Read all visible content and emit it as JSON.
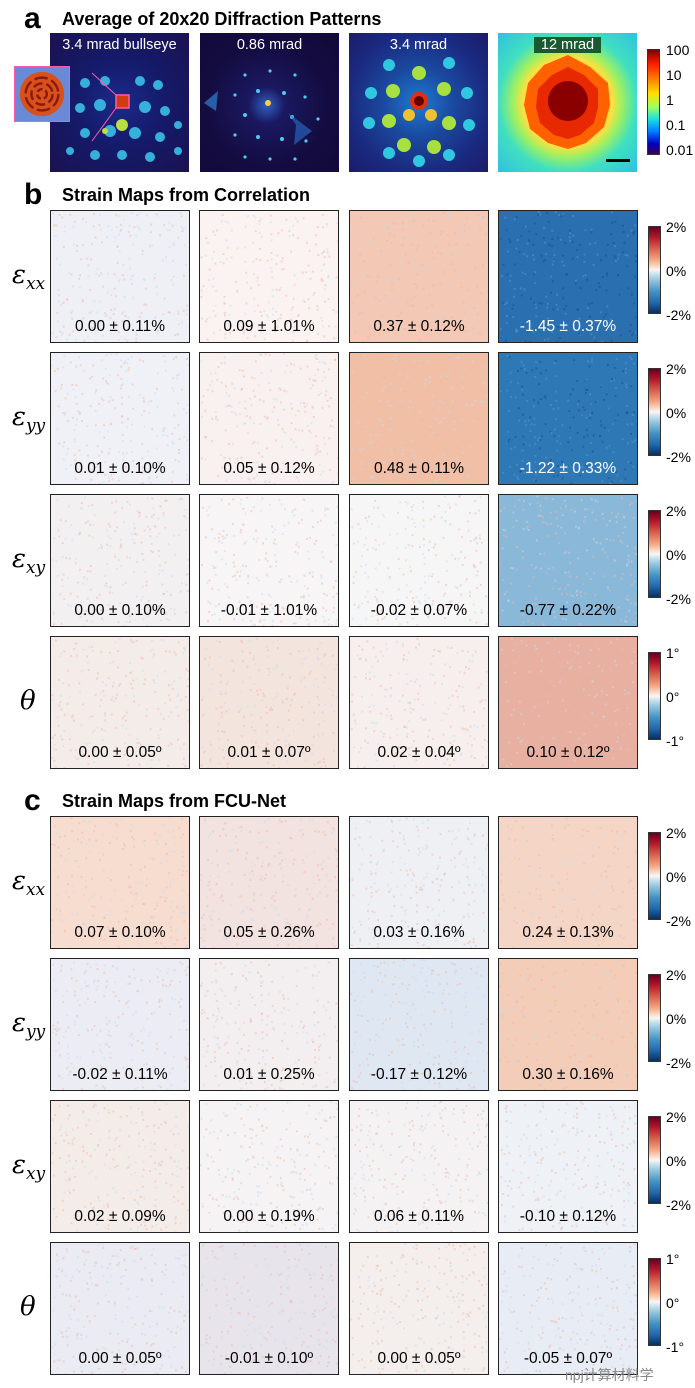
{
  "panel_a": {
    "letter": "a",
    "title": "Average of 20x20 Diffraction Patterns",
    "images": [
      {
        "label": "3.4 mrad bullseye"
      },
      {
        "label": "0.86 mrad"
      },
      {
        "label": "3.4 mrad"
      },
      {
        "label": "12 mrad"
      }
    ],
    "colorbar_ticks": [
      "100",
      "10",
      "1",
      "0.1",
      "0.01"
    ]
  },
  "panel_b": {
    "letter": "b",
    "title": "Strain Maps from Correlation",
    "rows": [
      {
        "label_main": "ε",
        "label_sub": "xx",
        "values": [
          "0.00 ± 0.11%",
          "0.09 ± 1.01%",
          "0.37 ± 0.12%",
          "-1.45 ± 0.37%"
        ],
        "ticks": [
          "2%",
          "0%",
          "-2%"
        ]
      },
      {
        "label_main": "ε",
        "label_sub": "yy",
        "values": [
          "0.01 ± 0.10%",
          "0.05 ± 0.12%",
          "0.48 ± 0.11%",
          "-1.22 ± 0.33%"
        ],
        "ticks": [
          "2%",
          "0%",
          "-2%"
        ]
      },
      {
        "label_main": "ε",
        "label_sub": "xy",
        "values": [
          "0.00 ± 0.10%",
          "-0.01 ± 1.01%",
          "-0.02 ± 0.07%",
          "-0.77 ± 0.22%"
        ],
        "ticks": [
          "2%",
          "0%",
          "-2%"
        ]
      },
      {
        "label_main": "θ",
        "label_sub": "",
        "values": [
          "0.00 ± 0.05º",
          "0.01 ± 0.07º",
          "0.02 ± 0.04º",
          "0.10 ± 0.12º"
        ],
        "ticks": [
          "1°",
          "0°",
          "-1°"
        ]
      }
    ]
  },
  "panel_c": {
    "letter": "c",
    "title": "Strain Maps from FCU-Net",
    "rows": [
      {
        "label_main": "ε",
        "label_sub": "xx",
        "values": [
          "0.07 ± 0.10%",
          "0.05 ± 0.26%",
          "0.03 ± 0.16%",
          "0.24 ± 0.13%"
        ],
        "ticks": [
          "2%",
          "0%",
          "-2%"
        ]
      },
      {
        "label_main": "ε",
        "label_sub": "yy",
        "values": [
          "-0.02 ± 0.11%",
          "0.01 ± 0.25%",
          "-0.17 ± 0.12%",
          "0.30 ± 0.16%"
        ],
        "ticks": [
          "2%",
          "0%",
          "-2%"
        ]
      },
      {
        "label_main": "ε",
        "label_sub": "xy",
        "values": [
          "0.02 ± 0.09%",
          "0.00 ± 0.19%",
          "0.06 ± 0.11%",
          "-0.10 ± 0.12%"
        ],
        "ticks": [
          "2%",
          "0%",
          "-2%"
        ]
      },
      {
        "label_main": "θ",
        "label_sub": "",
        "values": [
          "0.00 ± 0.05º",
          "-0.01 ± 0.10º",
          "0.00 ± 0.05º",
          "-0.05 ± 0.07º"
        ],
        "ticks": [
          "1°",
          "0°",
          "-1°"
        ]
      }
    ]
  },
  "watermark": {
    "text": "npj计算材料学"
  },
  "colors": {
    "red": "#b2182b",
    "white": "#f7f7f7",
    "blue": "#2166ac",
    "dark_blue": "#053061"
  }
}
